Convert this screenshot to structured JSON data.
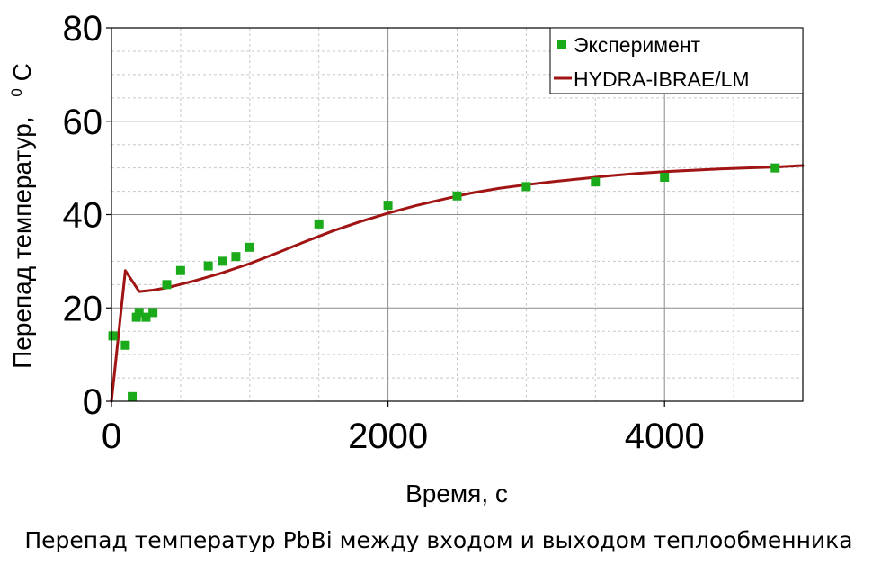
{
  "chart_data": {
    "type": "line",
    "caption": "Перепад температур PbBi между входом и выходом теплообменника",
    "xlabel": "Время, с",
    "ylabel": "Перепад температур,",
    "ylabel_unit_sup": "0",
    "ylabel_unit": "C",
    "xlim": [
      0,
      5000
    ],
    "ylim": [
      0,
      80
    ],
    "x_ticks": [
      0,
      2000,
      4000
    ],
    "y_ticks": [
      0,
      20,
      40,
      60,
      80
    ],
    "x_minor_step": 500,
    "y_minor_step": 5,
    "grid": true,
    "legend_position": "top-right",
    "colors": {
      "experiment": "#1aaa1a",
      "model": "#a01414",
      "grid_major": "#8c8c8c",
      "grid_minor": "#c8c8c8"
    },
    "series": [
      {
        "name": "Эксперимент",
        "kind": "scatter",
        "marker": "square",
        "points": [
          [
            10,
            14
          ],
          [
            100,
            12
          ],
          [
            150,
            1
          ],
          [
            180,
            18
          ],
          [
            200,
            19
          ],
          [
            250,
            18
          ],
          [
            300,
            19
          ],
          [
            400,
            25
          ],
          [
            500,
            28
          ],
          [
            700,
            29
          ],
          [
            800,
            30
          ],
          [
            900,
            31
          ],
          [
            1000,
            33
          ],
          [
            1500,
            38
          ],
          [
            2000,
            42
          ],
          [
            2500,
            44
          ],
          [
            3000,
            46
          ],
          [
            3500,
            47
          ],
          [
            4000,
            48
          ],
          [
            4800,
            50
          ]
        ]
      },
      {
        "name": "HYDRA-IBRAE/LM",
        "kind": "line",
        "points": [
          [
            0,
            0
          ],
          [
            100,
            28
          ],
          [
            200,
            23.5
          ],
          [
            300,
            23.8
          ],
          [
            400,
            24.3
          ],
          [
            600,
            25.8
          ],
          [
            800,
            27.5
          ],
          [
            1000,
            29.5
          ],
          [
            1200,
            31.8
          ],
          [
            1400,
            34.2
          ],
          [
            1600,
            36.5
          ],
          [
            1800,
            38.5
          ],
          [
            2000,
            40.3
          ],
          [
            2200,
            41.9
          ],
          [
            2400,
            43.3
          ],
          [
            2600,
            44.6
          ],
          [
            2800,
            45.6
          ],
          [
            3000,
            46.4
          ],
          [
            3200,
            47.1
          ],
          [
            3400,
            47.7
          ],
          [
            3600,
            48.3
          ],
          [
            3800,
            48.8
          ],
          [
            4000,
            49.2
          ],
          [
            4200,
            49.5
          ],
          [
            4400,
            49.8
          ],
          [
            4600,
            50.0
          ],
          [
            4800,
            50.2
          ],
          [
            5000,
            50.5
          ]
        ]
      }
    ]
  }
}
